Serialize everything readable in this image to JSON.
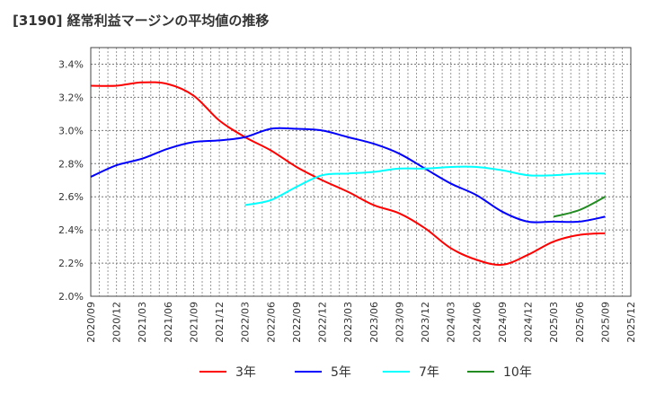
{
  "chart_data": {
    "type": "line",
    "title": "[3190]  経常利益マージンの平均値の推移",
    "xlabel": "",
    "ylabel": "",
    "ylim": [
      2.0,
      3.5
    ],
    "yticks": [
      "2.0%",
      "2.2%",
      "2.4%",
      "2.6%",
      "2.8%",
      "3.0%",
      "3.2%",
      "3.4%"
    ],
    "ytick_values": [
      2.0,
      2.2,
      2.4,
      2.6,
      2.8,
      3.0,
      3.2,
      3.4
    ],
    "x": [
      "2020/09",
      "2020/12",
      "2021/03",
      "2021/06",
      "2021/09",
      "2021/12",
      "2022/03",
      "2022/06",
      "2022/09",
      "2022/12",
      "2023/03",
      "2023/06",
      "2023/09",
      "2023/12",
      "2024/03",
      "2024/06",
      "2024/09",
      "2024/12",
      "2025/03",
      "2025/06",
      "2025/09",
      "2025/12"
    ],
    "grid": true,
    "legend_position": "bottom",
    "series": [
      {
        "name": "3年",
        "color": "#ff0000",
        "values": [
          3.27,
          3.27,
          3.29,
          3.28,
          3.21,
          3.06,
          2.96,
          2.88,
          2.78,
          2.7,
          2.63,
          2.55,
          2.5,
          2.41,
          2.29,
          2.22,
          2.19,
          2.25,
          2.33,
          2.37,
          2.38,
          null
        ]
      },
      {
        "name": "5年",
        "color": "#0000ff",
        "values": [
          2.72,
          2.79,
          2.83,
          2.89,
          2.93,
          2.94,
          2.96,
          3.01,
          3.01,
          3.0,
          2.96,
          2.92,
          2.86,
          2.77,
          2.68,
          2.61,
          2.51,
          2.45,
          2.45,
          2.45,
          2.48,
          null
        ]
      },
      {
        "name": "7年",
        "color": "#00ffff",
        "values": [
          null,
          null,
          null,
          null,
          null,
          null,
          2.55,
          2.58,
          2.66,
          2.73,
          2.74,
          2.75,
          2.77,
          2.77,
          2.78,
          2.78,
          2.76,
          2.73,
          2.73,
          2.74,
          2.74,
          null
        ]
      },
      {
        "name": "10年",
        "color": "#228b22",
        "values": [
          null,
          null,
          null,
          null,
          null,
          null,
          null,
          null,
          null,
          null,
          null,
          null,
          null,
          null,
          null,
          null,
          null,
          null,
          2.48,
          2.52,
          2.6,
          null
        ]
      }
    ]
  }
}
